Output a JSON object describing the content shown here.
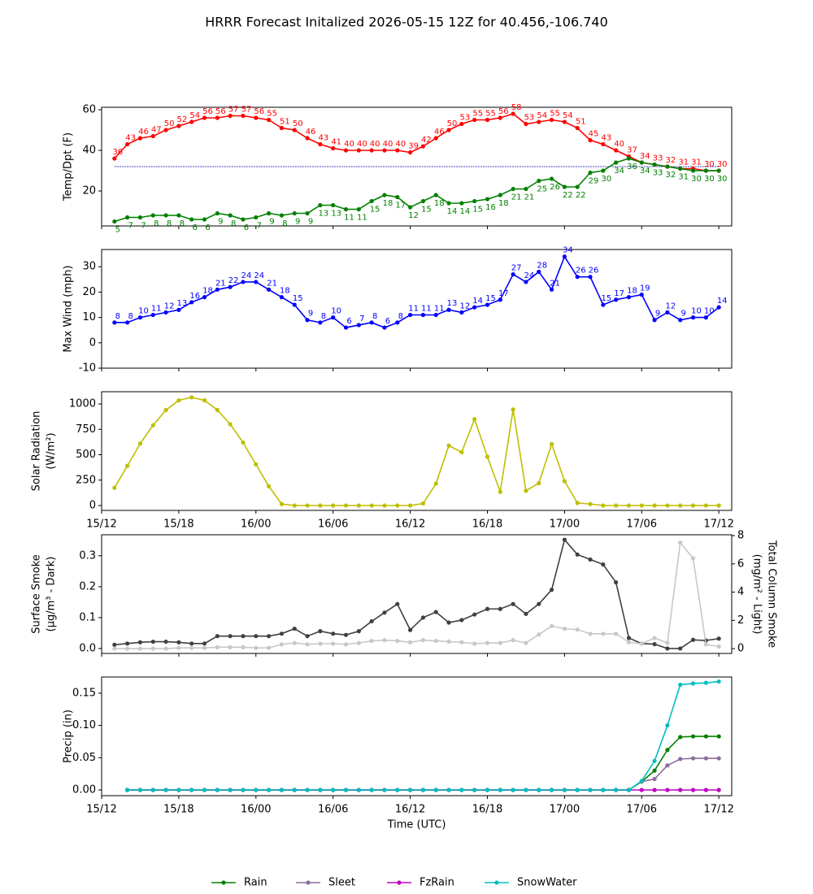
{
  "chart_data": [
    {
      "type": "line",
      "title": "HRRR Forecast Initalized 2026-05-15 12Z for 40.456,-106.740",
      "ylabel": "Temp/Dpt (F)",
      "x": [
        "15/13",
        "15/14",
        "15/15",
        "15/16",
        "15/17",
        "15/18",
        "15/19",
        "15/20",
        "15/21",
        "15/22",
        "15/23",
        "16/00",
        "16/01",
        "16/02",
        "16/03",
        "16/04",
        "16/05",
        "16/06",
        "16/07",
        "16/08",
        "16/09",
        "16/10",
        "16/11",
        "16/12",
        "16/13",
        "16/14",
        "16/15",
        "16/16",
        "16/17",
        "16/18",
        "16/19",
        "16/20",
        "16/21",
        "16/22",
        "16/23",
        "17/00",
        "17/01",
        "17/02",
        "17/03",
        "17/04",
        "17/05",
        "17/06",
        "17/07",
        "17/08",
        "17/09",
        "17/10",
        "17/11",
        "17/12"
      ],
      "xlim": [
        "15/12",
        "17/13"
      ],
      "ylim": [
        2.8,
        61.2
      ],
      "yticks": [
        20,
        40,
        60
      ],
      "ref_line": 32,
      "ref_color": "#0000aa",
      "data_labels": true,
      "series": [
        {
          "name": "Temp",
          "color": "#ff0000",
          "label_position": "above",
          "values": [
            36,
            43,
            46,
            47,
            50,
            52,
            54,
            56,
            56,
            57,
            57,
            56,
            55,
            51,
            50,
            46,
            43,
            41,
            40,
            40,
            40,
            40,
            40,
            39,
            42,
            46,
            50,
            53,
            55,
            55,
            56,
            58,
            53,
            54,
            55,
            54,
            51,
            45,
            43,
            40,
            37,
            34,
            33,
            32,
            31,
            31,
            30,
            30
          ]
        },
        {
          "name": "Dewpoint",
          "color": "#008000",
          "label_position": "below",
          "values": [
            5,
            7,
            7,
            8,
            8,
            8,
            6,
            6,
            9,
            8,
            6,
            7,
            9,
            8,
            9,
            9,
            13,
            13,
            11,
            11,
            15,
            18,
            17,
            12,
            15,
            18,
            14,
            14,
            15,
            16,
            18,
            21,
            21,
            25,
            26,
            22,
            22,
            29,
            30,
            34,
            36,
            34,
            33,
            32,
            31,
            30,
            30,
            30
          ]
        }
      ]
    },
    {
      "type": "line",
      "ylabel": "Max Wind (mph)",
      "x": [
        "15/13",
        "15/14",
        "15/15",
        "15/16",
        "15/17",
        "15/18",
        "15/19",
        "15/20",
        "15/21",
        "15/22",
        "15/23",
        "16/00",
        "16/01",
        "16/02",
        "16/03",
        "16/04",
        "16/05",
        "16/06",
        "16/07",
        "16/08",
        "16/09",
        "16/10",
        "16/11",
        "16/12",
        "16/13",
        "16/14",
        "16/15",
        "16/16",
        "16/17",
        "16/18",
        "16/19",
        "16/20",
        "16/21",
        "16/22",
        "16/23",
        "17/00",
        "17/01",
        "17/02",
        "17/03",
        "17/04",
        "17/05",
        "17/06",
        "17/07",
        "17/08",
        "17/09",
        "17/10",
        "17/11",
        "17/12"
      ],
      "xlim": [
        "15/12",
        "17/13"
      ],
      "ylim": [
        -10,
        36.8
      ],
      "yticks": [
        -10,
        0,
        10,
        20,
        30
      ],
      "data_labels": true,
      "series": [
        {
          "name": "Max Wind",
          "color": "#0000ff",
          "label_position": "above",
          "values": [
            8,
            8,
            10,
            11,
            12,
            13,
            16,
            18,
            21,
            22,
            24,
            24,
            21,
            18,
            15,
            9,
            8,
            10,
            6,
            7,
            8,
            6,
            8,
            11,
            11,
            11,
            13,
            12,
            14,
            15,
            17,
            27,
            24,
            28,
            21,
            34,
            26,
            26,
            15,
            17,
            18,
            19,
            9,
            12,
            9,
            10,
            10,
            14
          ]
        }
      ]
    },
    {
      "type": "line",
      "ylabel": [
        "Solar Radiation",
        "(W/m²)"
      ],
      "x": [
        "15/13",
        "15/14",
        "15/15",
        "15/16",
        "15/17",
        "15/18",
        "15/19",
        "15/20",
        "15/21",
        "15/22",
        "15/23",
        "16/00",
        "16/01",
        "16/02",
        "16/03",
        "16/04",
        "16/05",
        "16/06",
        "16/07",
        "16/08",
        "16/09",
        "16/10",
        "16/11",
        "16/12",
        "16/13",
        "16/14",
        "16/15",
        "16/16",
        "16/17",
        "16/18",
        "16/19",
        "16/20",
        "16/21",
        "16/22",
        "16/23",
        "17/00",
        "17/01",
        "17/02",
        "17/03",
        "17/04",
        "17/05",
        "17/06",
        "17/07",
        "17/08",
        "17/09",
        "17/10",
        "17/11",
        "17/12"
      ],
      "xlim": [
        "15/12",
        "17/13"
      ],
      "ylim": [
        -48,
        1120
      ],
      "yticks": [
        0,
        250,
        500,
        750,
        1000
      ],
      "xticks": [
        "15/12",
        "15/18",
        "16/00",
        "16/06",
        "16/12",
        "16/18",
        "17/00",
        "17/06",
        "17/12"
      ],
      "series": [
        {
          "name": "Solar Radiation",
          "color": "#bfbf00",
          "values": [
            175,
            390,
            610,
            790,
            940,
            1035,
            1065,
            1035,
            940,
            800,
            620,
            405,
            190,
            15,
            0,
            0,
            0,
            0,
            0,
            0,
            0,
            0,
            0,
            0,
            20,
            215,
            590,
            525,
            850,
            480,
            135,
            945,
            145,
            220,
            605,
            240,
            25,
            15,
            0,
            0,
            0,
            0,
            0,
            0,
            0,
            0,
            0,
            0
          ]
        }
      ]
    },
    {
      "type": "line",
      "ylabel": [
        "Surface Smoke",
        "(μg/m³ - Dark)"
      ],
      "y2label": [
        "Total Column Smoke",
        "(mg/m² - Light)"
      ],
      "x": [
        "15/13",
        "15/14",
        "15/15",
        "15/16",
        "15/17",
        "15/18",
        "15/19",
        "15/20",
        "15/21",
        "15/22",
        "15/23",
        "16/00",
        "16/01",
        "16/02",
        "16/03",
        "16/04",
        "16/05",
        "16/06",
        "16/07",
        "16/08",
        "16/09",
        "16/10",
        "16/11",
        "16/12",
        "16/13",
        "16/14",
        "16/15",
        "16/16",
        "16/17",
        "16/18",
        "16/19",
        "16/20",
        "16/21",
        "16/22",
        "16/23",
        "17/00",
        "17/01",
        "17/02",
        "17/03",
        "17/04",
        "17/05",
        "17/06",
        "17/07",
        "17/08",
        "17/09",
        "17/10",
        "17/11",
        "17/12"
      ],
      "xlim": [
        "15/12",
        "17/13"
      ],
      "ylim": [
        -0.016,
        0.368
      ],
      "yticks": [
        {
          "value": 0,
          "label": "0.0"
        },
        0.1,
        0.2,
        0.3
      ],
      "y2lim": [
        -0.34,
        8.06
      ],
      "y2ticks": [
        0,
        2,
        4,
        6,
        8
      ],
      "series": [
        {
          "name": "Surface Smoke",
          "color": "#404040",
          "values": [
            0.012,
            0.016,
            0.02,
            0.022,
            0.022,
            0.02,
            0.016,
            0.016,
            0.04,
            0.04,
            0.04,
            0.04,
            0.04,
            0.048,
            0.064,
            0.04,
            0.056,
            0.048,
            0.044,
            0.056,
            0.088,
            0.116,
            0.144,
            0.06,
            0.1,
            0.118,
            0.084,
            0.092,
            0.11,
            0.128,
            0.128,
            0.144,
            0.112,
            0.144,
            0.19,
            0.352,
            0.304,
            0.288,
            0.272,
            0.214,
            0.034,
            0.016,
            0.014,
            0,
            0,
            0.028,
            0.026,
            0.032
          ]
        },
        {
          "name": "Total Column Smoke",
          "color": "#c8c8c8",
          "axis": "y2",
          "values": [
            0,
            0,
            0,
            0,
            0,
            0.05,
            0.05,
            0.05,
            0.1,
            0.1,
            0.1,
            0.05,
            0.05,
            0.3,
            0.4,
            0.3,
            0.35,
            0.35,
            0.3,
            0.4,
            0.55,
            0.6,
            0.55,
            0.45,
            0.6,
            0.55,
            0.5,
            0.45,
            0.35,
            0.4,
            0.4,
            0.6,
            0.4,
            1.0,
            1.6,
            1.4,
            1.35,
            1.05,
            1.05,
            1.05,
            0.45,
            0.35,
            0.75,
            0.4,
            7.5,
            6.4,
            0.3,
            0.15
          ]
        }
      ]
    },
    {
      "type": "line",
      "ylabel": "Precip (in)",
      "xlabel": "Time (UTC)",
      "legend": "bottom",
      "x": [
        "15/13",
        "15/14",
        "15/15",
        "15/16",
        "15/17",
        "15/18",
        "15/19",
        "15/20",
        "15/21",
        "15/22",
        "15/23",
        "16/00",
        "16/01",
        "16/02",
        "16/03",
        "16/04",
        "16/05",
        "16/06",
        "16/07",
        "16/08",
        "16/09",
        "16/10",
        "16/11",
        "16/12",
        "16/13",
        "16/14",
        "16/15",
        "16/16",
        "16/17",
        "16/18",
        "16/19",
        "16/20",
        "16/21",
        "16/22",
        "16/23",
        "17/00",
        "17/01",
        "17/02",
        "17/03",
        "17/04",
        "17/05",
        "17/06",
        "17/07",
        "17/08",
        "17/09",
        "17/10",
        "17/11",
        "17/12"
      ],
      "xlim": [
        "15/12",
        "17/13"
      ],
      "ylim": [
        -0.0088,
        0.175
      ],
      "yticks": [
        {
          "value": 0,
          "label": "0.00"
        },
        {
          "value": 0.05,
          "label": "0.05"
        },
        {
          "value": 0.1,
          "label": "0.10"
        },
        {
          "value": 0.15,
          "label": "0.15"
        }
      ],
      "xticks": [
        "15/12",
        "15/18",
        "16/00",
        "16/06",
        "16/12",
        "16/18",
        "17/00",
        "17/06",
        "17/12"
      ],
      "series": [
        {
          "name": "Rain",
          "color": "#008000",
          "values": [
            null,
            0,
            0,
            0,
            0,
            0,
            0,
            0,
            0,
            0,
            0,
            0,
            0,
            0,
            0,
            0,
            0,
            0,
            0,
            0,
            0,
            0,
            0,
            0,
            0,
            0,
            0,
            0,
            0,
            0,
            0,
            0,
            0,
            0,
            0,
            0,
            0,
            0,
            0,
            0,
            0,
            0.013,
            0.03,
            0.062,
            0.082,
            0.083,
            0.083,
            0.083
          ]
        },
        {
          "name": "Sleet",
          "color": "#8c6d9c",
          "values": [
            null,
            0,
            0,
            0,
            0,
            0,
            0,
            0,
            0,
            0,
            0,
            0,
            0,
            0,
            0,
            0,
            0,
            0,
            0,
            0,
            0,
            0,
            0,
            0,
            0,
            0,
            0,
            0,
            0,
            0,
            0,
            0,
            0,
            0,
            0,
            0,
            0,
            0,
            0,
            0,
            0,
            0.013,
            0.017,
            0.038,
            0.048,
            0.049,
            0.049,
            0.049
          ]
        },
        {
          "name": "FzRain",
          "color": "#bf00bf",
          "values": [
            null,
            0,
            0,
            0,
            0,
            0,
            0,
            0,
            0,
            0,
            0,
            0,
            0,
            0,
            0,
            0,
            0,
            0,
            0,
            0,
            0,
            0,
            0,
            0,
            0,
            0,
            0,
            0,
            0,
            0,
            0,
            0,
            0,
            0,
            0,
            0,
            0,
            0,
            0,
            0,
            0,
            0,
            0,
            0,
            0,
            0,
            0,
            0
          ]
        },
        {
          "name": "SnowWater",
          "color": "#00bfbf",
          "values": [
            null,
            0,
            0,
            0,
            0,
            0,
            0,
            0,
            0,
            0,
            0,
            0,
            0,
            0,
            0,
            0,
            0,
            0,
            0,
            0,
            0,
            0,
            0,
            0,
            0,
            0,
            0,
            0,
            0,
            0,
            0,
            0,
            0,
            0,
            0,
            0,
            0,
            0,
            0,
            0,
            0,
            0.014,
            0.045,
            0.1,
            0.163,
            0.165,
            0.166,
            0.168
          ]
        }
      ]
    }
  ]
}
